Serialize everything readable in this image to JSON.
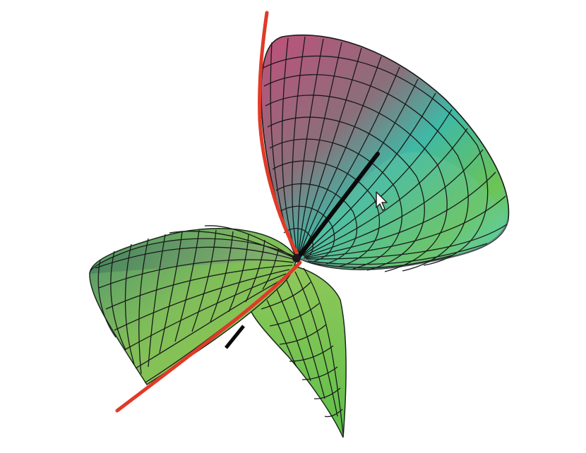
{
  "scene": {
    "surface": "mesh",
    "colors": {
      "background": "#ffffff",
      "mesh_line": "#111111",
      "red_axis": "#e03a28",
      "black_axis": "#0a0a0a",
      "magenta": "#c0507a",
      "teal": "#3fb9a6",
      "cyan": "#4fd6d0",
      "green": "#6cc454",
      "yellow_green": "#93cc4e"
    }
  },
  "cursor": {
    "icon": "pointer-cursor-icon"
  }
}
